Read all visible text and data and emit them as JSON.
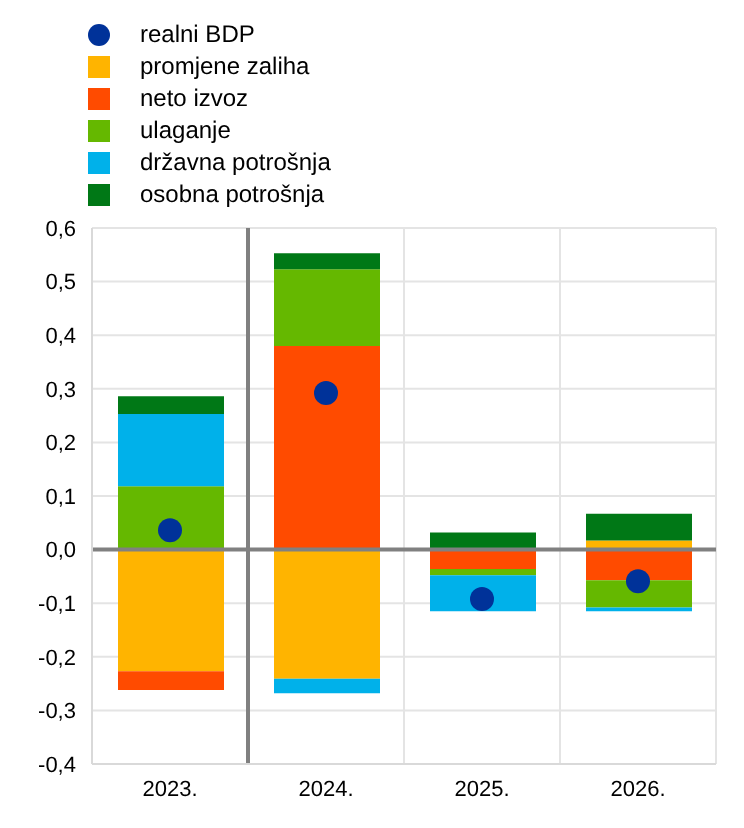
{
  "chart_data": {
    "type": "bar",
    "stacked": true,
    "x": [
      2023,
      2024,
      2025,
      2026
    ],
    "xlim": [
      2022.5,
      2026.5
    ],
    "xticks": [
      {
        "value": 2022.5,
        "label": null
      },
      {
        "value": 2023,
        "label": "2023."
      },
      {
        "value": 2024,
        "label": "2024."
      },
      {
        "value": 2024.5,
        "label": null
      },
      {
        "value": 2025,
        "label": "2025."
      },
      {
        "value": 2025.5,
        "label": null
      },
      {
        "value": 2026,
        "label": "2026."
      },
      {
        "value": 2026.5,
        "label": null
      }
    ],
    "ylim": [
      -0.4,
      0.6
    ],
    "yticks": [
      {
        "value": -0.4,
        "label": "-0,4"
      },
      {
        "value": -0.3,
        "label": "-0,3"
      },
      {
        "value": -0.2,
        "label": "-0,2"
      },
      {
        "value": -0.1,
        "label": "-0,1"
      },
      {
        "value": 0,
        "label": "0,0"
      },
      {
        "value": 0.1,
        "label": "0,1"
      },
      {
        "value": 0.2,
        "label": "0,2"
      },
      {
        "value": 0.3,
        "label": "0,3"
      },
      {
        "value": 0.4,
        "label": "0,4"
      },
      {
        "value": 0.5,
        "label": "0,5"
      },
      {
        "value": 0.6,
        "label": "0,6"
      }
    ],
    "grid": true,
    "legend": "top left",
    "series": [
      {
        "name": "realni BDP",
        "type": "scatter",
        "color": "#003299",
        "marker": "circle",
        "values": [
          0.036,
          0.292,
          -0.092,
          -0.059
        ]
      },
      {
        "name": "promjene zaliha",
        "color": "#ffb400",
        "values": [
          -0.227,
          -0.241,
          0,
          0.017
        ]
      },
      {
        "name": "neto izvoz",
        "color": "#ff4b00",
        "values": [
          -0.035,
          0.38,
          -0.036,
          -0.057
        ]
      },
      {
        "name": "ulaganje",
        "color": "#65b800",
        "values": [
          0.118,
          0.143,
          -0.012,
          -0.051
        ]
      },
      {
        "name": "državna potrošnja",
        "color": "#00b1ea",
        "values": [
          0.135,
          -0.027,
          -0.067,
          -0.007
        ]
      },
      {
        "name": "osobna potrošnja",
        "color": "#007816",
        "values": [
          0.033,
          0.03,
          0.032,
          0.05
        ]
      }
    ],
    "ref_lines": [
      {
        "axis": "y",
        "value": 0,
        "color": "#808080"
      },
      {
        "axis": "x",
        "value": 2023.5,
        "color": "#808080"
      }
    ]
  }
}
